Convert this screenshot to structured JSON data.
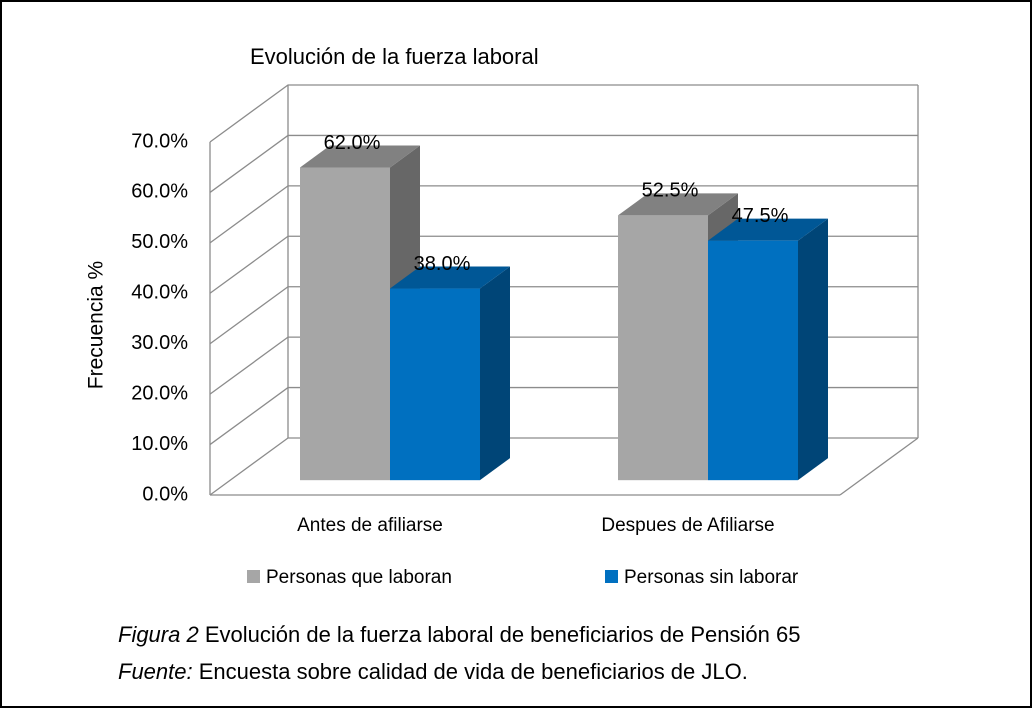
{
  "chart_data": {
    "type": "bar3d",
    "title": "Evolución de la fuerza laboral",
    "y_label": "Frecuencia %",
    "categories": [
      "Antes de afiliarse",
      "Despues de Afiliarse"
    ],
    "series": [
      {
        "name": "Personas que laboran",
        "color": "#a6a6a6",
        "values": [
          62.0,
          52.5
        ],
        "value_labels": [
          "62.0%",
          "52.5%"
        ]
      },
      {
        "name": "Personas sin laborar",
        "color": "#0070c0",
        "values": [
          38.0,
          47.5
        ],
        "value_labels": [
          "38.0%",
          "47.5%"
        ]
      }
    ],
    "ylim": [
      0,
      70
    ],
    "yticks": [
      {
        "value": 0,
        "label": "0.0%"
      },
      {
        "value": 10,
        "label": "10.0%"
      },
      {
        "value": 20,
        "label": "20.0%"
      },
      {
        "value": 30,
        "label": "30.0%"
      },
      {
        "value": 40,
        "label": "40.0%"
      },
      {
        "value": 50,
        "label": "50.0%"
      },
      {
        "value": 60,
        "label": "60.0%"
      },
      {
        "value": 70,
        "label": "70.0%"
      }
    ],
    "grid": true,
    "legend": "bottom"
  },
  "caption": {
    "label": "Figura 2",
    "text": "Evolución de la fuerza laboral de beneficiarios de Pensión 65"
  },
  "source": {
    "label": "Fuente:",
    "text": "Encuesta sobre calidad de vida de beneficiarios de JLO."
  }
}
